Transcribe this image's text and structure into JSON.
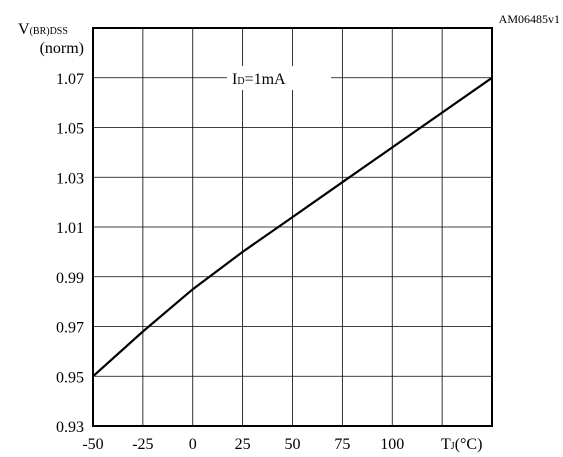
{
  "figure_id": "AM06485v1",
  "chart_data": {
    "type": "line",
    "ylabel_main": "V",
    "ylabel_sub": "(BR)DSS",
    "ylabel_unit": "(norm)",
    "xlabel": "T",
    "xlabel_sub": "J",
    "xlabel_unit": "(°C)",
    "annotation_main": "I",
    "annotation_sub": "D",
    "annotation_value": "=1mA",
    "xlim": [
      -50,
      150
    ],
    "ylim": [
      0.93,
      1.09
    ],
    "x_ticks": [
      -50,
      -25,
      0,
      25,
      50,
      75,
      100
    ],
    "x_tick_labels": [
      "-50",
      "-25",
      "0",
      "25",
      "50",
      "75",
      "100"
    ],
    "y_ticks": [
      0.93,
      0.95,
      0.97,
      0.99,
      1.01,
      1.03,
      1.05,
      1.07
    ],
    "y_tick_labels": [
      "0.93",
      "0.95",
      "0.97",
      "0.99",
      "1.01",
      "1.03",
      "1.05",
      "1.07"
    ],
    "x_grid": [
      -50,
      -25,
      0,
      25,
      50,
      75,
      100,
      125,
      150
    ],
    "y_grid": [
      0.93,
      0.95,
      0.97,
      0.99,
      1.01,
      1.03,
      1.05,
      1.07,
      1.09
    ],
    "series": [
      {
        "x": [
          -50,
          -25,
          0,
          25,
          50,
          75,
          100,
          125,
          150
        ],
        "y": [
          0.95,
          0.968,
          0.985,
          1.0,
          1.014,
          1.028,
          1.042,
          1.056,
          1.07
        ]
      }
    ]
  }
}
